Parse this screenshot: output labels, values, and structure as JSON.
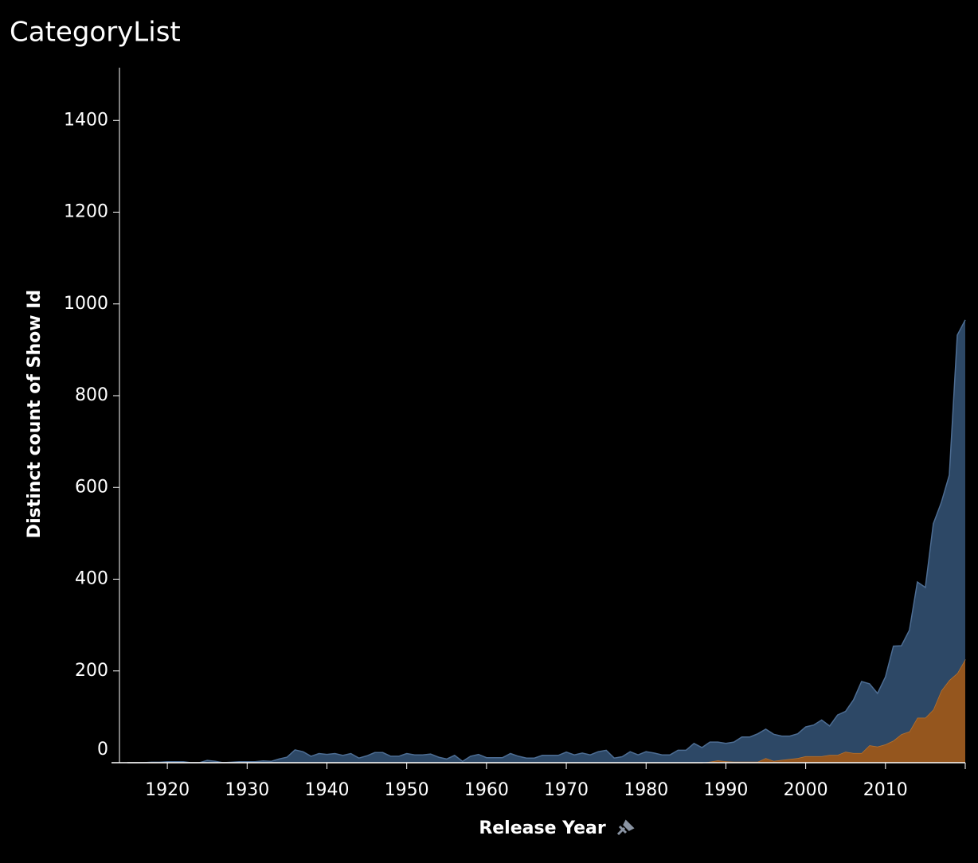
{
  "chart_data": {
    "type": "stacked-area",
    "title": "CategoryList",
    "x_label": "Release Year",
    "y_label": "Distinct count of Show Id",
    "x": [
      1915,
      1916,
      1917,
      1918,
      1919,
      1920,
      1921,
      1922,
      1923,
      1924,
      1925,
      1926,
      1927,
      1928,
      1929,
      1930,
      1931,
      1932,
      1933,
      1934,
      1935,
      1936,
      1937,
      1938,
      1939,
      1940,
      1941,
      1942,
      1943,
      1944,
      1945,
      1946,
      1947,
      1948,
      1949,
      1950,
      1951,
      1952,
      1953,
      1954,
      1955,
      1956,
      1957,
      1958,
      1959,
      1960,
      1961,
      1962,
      1963,
      1964,
      1965,
      1966,
      1967,
      1968,
      1969,
      1970,
      1971,
      1972,
      1973,
      1974,
      1975,
      1976,
      1977,
      1978,
      1979,
      1980,
      1981,
      1982,
      1983,
      1984,
      1985,
      1986,
      1987,
      1988,
      1989,
      1990,
      1991,
      1992,
      1993,
      1994,
      1995,
      1996,
      1997,
      1998,
      1999,
      2000,
      2001,
      2002,
      2003,
      2004,
      2005,
      2006,
      2007,
      2008,
      2009,
      2010,
      2011,
      2012,
      2013,
      2014,
      2015,
      2016,
      2017,
      2018,
      2019,
      2020
    ],
    "series": [
      {
        "color": "#95561e",
        "line_color": "#b8732f",
        "values": [
          0,
          0,
          0,
          0,
          0,
          0,
          0,
          0,
          0,
          0,
          0,
          0,
          0,
          0,
          0,
          0,
          0,
          0,
          0,
          0,
          0,
          0,
          0,
          0,
          0,
          0,
          0,
          0,
          0,
          0,
          0,
          0,
          0,
          0,
          0,
          0,
          0,
          0,
          0,
          0,
          0,
          0,
          0,
          0,
          0,
          0,
          0,
          0,
          0,
          0,
          0,
          0,
          0,
          0,
          0,
          0,
          0,
          0,
          0,
          0,
          0,
          0,
          0,
          0,
          0,
          0,
          0,
          0,
          0,
          0,
          0,
          0,
          0,
          2,
          5,
          3,
          2,
          2,
          2,
          2,
          10,
          4,
          6,
          8,
          10,
          14,
          14,
          14,
          17,
          17,
          24,
          21,
          21,
          38,
          35,
          40,
          48,
          62,
          68,
          98,
          98,
          116,
          157,
          180,
          195,
          225
        ]
      },
      {
        "color": "#2d4866",
        "line_color": "#4d6d93",
        "values": [
          0,
          0,
          0,
          1,
          1,
          2,
          2,
          2,
          0,
          0,
          5,
          3,
          0,
          1,
          2,
          2,
          2,
          4,
          3,
          8,
          12,
          28,
          24,
          14,
          20,
          18,
          20,
          16,
          20,
          10,
          15,
          22,
          22,
          14,
          14,
          20,
          17,
          17,
          19,
          12,
          8,
          16,
          3,
          14,
          18,
          11,
          11,
          11,
          20,
          14,
          10,
          10,
          16,
          16,
          16,
          23,
          17,
          21,
          17,
          24,
          27,
          10,
          13,
          24,
          17,
          24,
          21,
          17,
          17,
          27,
          27,
          42,
          33,
          43,
          40,
          39,
          43,
          54,
          54,
          61,
          63,
          58,
          52,
          50,
          53,
          64,
          68,
          79,
          63,
          87,
          88,
          116,
          156,
          134,
          116,
          147,
          206,
          193,
          221,
          296,
          284,
          405,
          410,
          447,
          737,
          740
        ]
      }
    ],
    "xlim": [
      1914,
      2020
    ],
    "ylim": [
      0,
      1515
    ],
    "xticks": [
      1920,
      1930,
      1940,
      1950,
      1960,
      1970,
      1980,
      1990,
      2000,
      2010
    ],
    "yticks": [
      0,
      200,
      400,
      600,
      800,
      1000,
      1200,
      1400
    ]
  }
}
